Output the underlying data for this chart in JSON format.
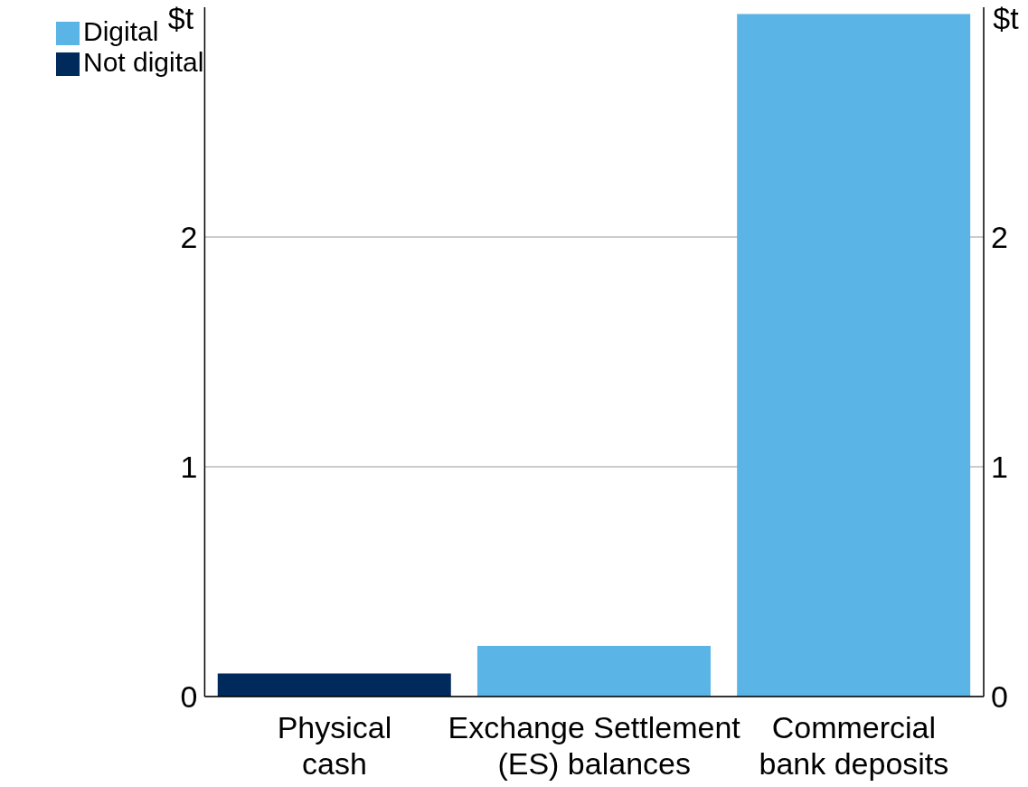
{
  "chart_data": {
    "type": "bar",
    "stacked": true,
    "ylabel": "$t",
    "y2label": "$t",
    "categories": [
      "Physical cash",
      "Exchange Settlement (ES) balances",
      "Commercial bank deposits"
    ],
    "series": [
      {
        "name": "Digital",
        "color": "#5ab4e5",
        "values": [
          null,
          0.22,
          2.97
        ]
      },
      {
        "name": "Not digital",
        "color": "#002a5c",
        "values": [
          0.1,
          null,
          null
        ]
      }
    ],
    "ylim": [
      0,
      3
    ],
    "yticks": [
      0,
      1,
      2
    ],
    "y2lim": [
      0,
      3
    ],
    "y2ticks": [
      0,
      1,
      2
    ],
    "grid": "y",
    "legend": "top left"
  }
}
